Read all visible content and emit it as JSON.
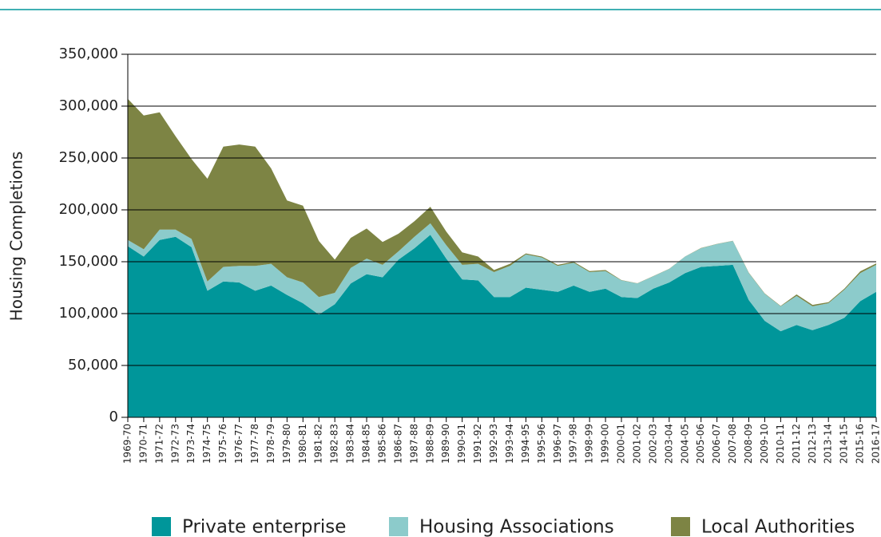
{
  "chart_data": {
    "type": "stacked_area",
    "y_label": "Housing Completions",
    "categories": [
      "1969-70",
      "1970-71",
      "1971-72",
      "1972-73",
      "1973-74",
      "1974-75",
      "1975-76",
      "1976-77",
      "1977-78",
      "1978-79",
      "1979-80",
      "1980-81",
      "1981-82",
      "1982-83",
      "1983-84",
      "1984-85",
      "1985-86",
      "1986-87",
      "1987-88",
      "1988-89",
      "1989-90",
      "1990-91",
      "1991-92",
      "1992-93",
      "1993-94",
      "1994-95",
      "1995-96",
      "1996-97",
      "1997-98",
      "1998-99",
      "1999-00",
      "2000-01",
      "2001-02",
      "2002-03",
      "2003-04",
      "2004-05",
      "2005-06",
      "2006-07",
      "2007-08",
      "2008-09",
      "2009-10",
      "2010-11",
      "2011-12",
      "2012-13",
      "2013-14",
      "2014-15",
      "2015-16",
      "2016-17"
    ],
    "series": [
      {
        "name": "Private enterprise",
        "color": "#00969a",
        "values": [
          165000,
          155000,
          171000,
          174000,
          164000,
          122000,
          131000,
          130000,
          122000,
          127000,
          118000,
          110000,
          99000,
          109000,
          129000,
          138000,
          135000,
          152000,
          163000,
          176000,
          153000,
          133000,
          132000,
          116000,
          116000,
          125000,
          123000,
          121000,
          127000,
          121000,
          124000,
          116000,
          115000,
          124000,
          130000,
          139000,
          145000,
          146000,
          147000,
          113000,
          93000,
          83000,
          89000,
          84000,
          89000,
          96000,
          112000,
          121000
        ]
      },
      {
        "name": "Housing Associations",
        "color": "#8ccbcb",
        "values": [
          6000,
          7000,
          10000,
          7000,
          8000,
          9000,
          14000,
          16000,
          24000,
          21000,
          17000,
          20000,
          17000,
          11000,
          15000,
          15000,
          12000,
          8000,
          11000,
          11000,
          13000,
          14000,
          16000,
          24000,
          30000,
          32000,
          31000,
          25000,
          22000,
          19000,
          17000,
          16000,
          14000,
          12000,
          13000,
          16000,
          18000,
          21000,
          23000,
          26000,
          26000,
          24000,
          28000,
          23000,
          21000,
          27000,
          27000,
          26000
        ]
      },
      {
        "name": "Local Authorities",
        "color": "#7d8444",
        "values": [
          136000,
          129000,
          113000,
          90000,
          77000,
          99000,
          116000,
          117000,
          115000,
          92000,
          74000,
          74000,
          54000,
          32000,
          29000,
          29000,
          22000,
          17000,
          15000,
          16000,
          13000,
          12000,
          7000,
          2000,
          2000,
          1000,
          1000,
          1000,
          1000,
          1000,
          1000,
          300,
          200,
          200,
          200,
          100,
          300,
          200,
          200,
          400,
          400,
          400,
          1500,
          1400,
          1000,
          1000,
          1800,
          1400
        ]
      }
    ],
    "ylim": [
      0,
      350000
    ],
    "yticks": [
      0,
      {
        "value": 50000,
        "label": "50,000"
      },
      {
        "value": 100000,
        "label": "100,000"
      },
      {
        "value": 150000,
        "label": "150,000"
      },
      {
        "value": 200000,
        "label": "200,000"
      },
      {
        "value": 250000,
        "label": "250,000"
      },
      {
        "value": 300000,
        "label": "300,000"
      },
      {
        "value": 350000,
        "label": "350,000"
      }
    ],
    "grid": true,
    "legend": "bottom"
  }
}
